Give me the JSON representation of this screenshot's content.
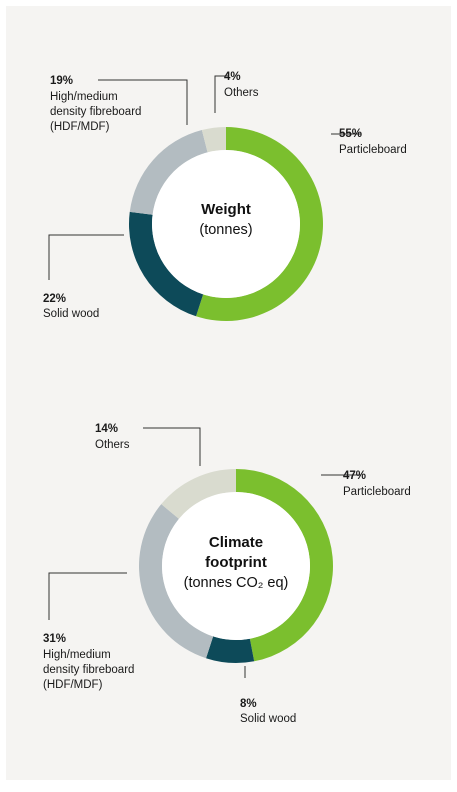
{
  "colors": {
    "background": "#f5f4f2",
    "particleboard": "#7bbf2e",
    "solid_wood": "#0d4a59",
    "hdf_mdf": "#b3bcc1",
    "others": "#d9dbcf"
  },
  "chart_data": [
    {
      "type": "pie",
      "center_title": "Weight",
      "center_subtitle": "(tonnes)",
      "slices": [
        {
          "pct_label": "55%",
          "value": 55,
          "label_lines": [
            "Particleboard"
          ],
          "color": "#7bbf2e"
        },
        {
          "pct_label": "22%",
          "value": 22,
          "label_lines": [
            "Solid wood"
          ],
          "color": "#0d4a59"
        },
        {
          "pct_label": "19%",
          "value": 19,
          "label_lines": [
            "High/medium",
            "density fibreboard",
            "(HDF/MDF)"
          ],
          "color": "#b3bcc1"
        },
        {
          "pct_label": "4%",
          "value": 4,
          "label_lines": [
            "Others"
          ],
          "color": "#d9dbcf"
        }
      ]
    },
    {
      "type": "pie",
      "center_title_lines": [
        "Climate",
        "footprint"
      ],
      "center_subtitle": "(tonnes CO₂ eq)",
      "slices": [
        {
          "pct_label": "47%",
          "value": 47,
          "label_lines": [
            "Particleboard"
          ],
          "color": "#7bbf2e"
        },
        {
          "pct_label": "8%",
          "value": 8,
          "label_lines": [
            "Solid wood"
          ],
          "color": "#0d4a59"
        },
        {
          "pct_label": "31%",
          "value": 31,
          "label_lines": [
            "High/medium",
            "density fibreboard",
            "(HDF/MDF)"
          ],
          "color": "#b3bcc1"
        },
        {
          "pct_label": "14%",
          "value": 14,
          "label_lines": [
            "Others"
          ],
          "color": "#d9dbcf"
        }
      ]
    }
  ]
}
